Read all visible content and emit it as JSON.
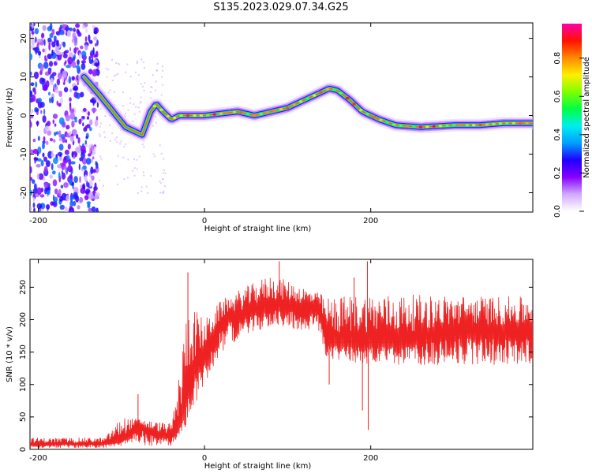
{
  "title": "S135.2023.029.07.34.G25",
  "colors": {
    "snr_line": "#ee2222",
    "colorbar_stops": [
      "#ffffff",
      "#d0aaff",
      "#8800ff",
      "#1f00ff",
      "#00a0ff",
      "#00eeee",
      "#00ff44",
      "#80ff00",
      "#ffee00",
      "#ff8800",
      "#ff1100",
      "#ff00aa"
    ]
  },
  "chart_data": [
    {
      "type": "heatmap",
      "title": "S135.2023.029.07.34.G25",
      "xlabel": "Height of straight line (km)",
      "ylabel": "Frequency (Hz)",
      "xlim": [
        -210,
        395
      ],
      "ylim": [
        -25,
        24
      ],
      "xticks": [
        -200,
        0,
        200
      ],
      "yticks": [
        -20,
        -10,
        0,
        10,
        20
      ],
      "colorbar": {
        "label": "Normalized spectral amplitude",
        "range": [
          0.0,
          0.98
        ],
        "ticks": [
          "0.0",
          "0.2",
          "0.4",
          "0.6",
          "0.8"
        ],
        "colormap": "rainbow"
      },
      "ridge": {
        "x": [
          -145,
          -125,
          -110,
          -95,
          -85,
          -75,
          -65,
          -58,
          -50,
          -40,
          -30,
          -20,
          0,
          20,
          40,
          60,
          80,
          100,
          120,
          140,
          150,
          160,
          175,
          190,
          210,
          230,
          260,
          300,
          330,
          360,
          395
        ],
        "y": [
          10,
          5,
          1,
          -3,
          -4,
          -5,
          1,
          3,
          1,
          -1,
          0,
          0,
          0,
          0.5,
          1,
          0,
          1,
          2,
          4,
          6,
          7,
          6.5,
          4,
          1,
          -1,
          -2.5,
          -3,
          -2.5,
          -2.5,
          -2,
          -2
        ]
      }
    },
    {
      "type": "line",
      "xlabel": "Height of straight line (km)",
      "ylabel": "SNR (10 * v/v)",
      "xlim": [
        -210,
        395
      ],
      "ylim": [
        0,
        293
      ],
      "xticks": [
        -200,
        0,
        200
      ],
      "yticks": [
        0,
        50,
        100,
        150,
        200,
        250
      ],
      "series": [
        {
          "x": [
            -210,
            -180,
            -150,
            -120,
            -100,
            -90,
            -80,
            -70,
            -60,
            -50,
            -40,
            -35,
            -30,
            -25,
            -20,
            -15,
            -10,
            -5,
            0,
            10,
            20,
            30,
            40,
            50,
            60,
            80,
            100,
            120,
            140,
            145,
            150,
            170,
            190,
            200,
            220,
            250,
            280,
            300,
            330,
            360,
            395
          ],
          "y": [
            8,
            8,
            8,
            9,
            12,
            25,
            40,
            30,
            25,
            22,
            20,
            22,
            35,
            60,
            95,
            110,
            125,
            135,
            145,
            170,
            195,
            205,
            205,
            210,
            215,
            222,
            222,
            218,
            215,
            170,
            165,
            165,
            168,
            165,
            165,
            168,
            175,
            180,
            182,
            180,
            180
          ],
          "noise_band": {
            "x": [
              -210,
              -120,
              -100,
              -40,
              -30,
              -20,
              0,
              20,
              40,
              80,
              140,
              145,
              200,
              395
            ],
            "lower": [
              2,
              2,
              5,
              5,
              20,
              40,
              100,
              150,
              170,
              190,
              180,
              140,
              130,
              130
            ],
            "upper": [
              18,
              18,
              50,
              40,
              120,
              230,
              200,
              230,
              245,
              270,
              240,
              235,
              240,
              235
            ]
          },
          "spikes": [
            {
              "x": -80,
              "y": 85
            },
            {
              "x": -20,
              "y": 273
            },
            {
              "x": 90,
              "y": 290
            },
            {
              "x": 180,
              "y": 265
            },
            {
              "x": 196,
              "y": 290
            },
            {
              "x": 197,
              "y": 30
            },
            {
              "x": 190,
              "y": 60
            },
            {
              "x": 150,
              "y": 100
            }
          ]
        }
      ]
    }
  ]
}
